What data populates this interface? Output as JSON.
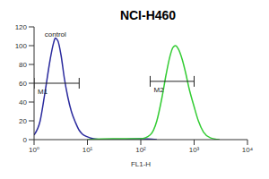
{
  "chart_data": {
    "type": "line",
    "title": "NCI-H460",
    "x_label": "FL1-H",
    "log": "x",
    "xlim": [
      1,
      10000
    ],
    "xticks": [
      {
        "value": 1,
        "label": "10⁰"
      },
      {
        "value": 10,
        "label": "10¹"
      },
      {
        "value": 100,
        "label": "10²"
      },
      {
        "value": 1000,
        "label": "10³"
      },
      {
        "value": 10000,
        "label": "10⁴"
      }
    ],
    "ylim": [
      0,
      120
    ],
    "yticks": [
      0,
      20,
      40,
      60,
      80,
      100,
      120
    ],
    "series": [
      {
        "color": "#2b2b9e",
        "x": [
          1,
          1.3,
          1.6,
          2,
          2.3,
          2.5,
          2.8,
          3.2,
          3.7,
          4.3,
          5,
          6,
          7,
          8,
          10,
          13,
          20,
          40,
          100,
          200
        ],
        "values": [
          5,
          20,
          50,
          85,
          102,
          108,
          105,
          90,
          65,
          45,
          30,
          18,
          10,
          6,
          3,
          1,
          0,
          0,
          1,
          0
        ]
      },
      {
        "color": "#33cc33",
        "x": [
          10,
          30,
          60,
          100,
          150,
          200,
          250,
          300,
          350,
          400,
          450,
          500,
          600,
          700,
          800,
          1000,
          1200,
          1500,
          2000,
          3000
        ],
        "values": [
          0,
          1,
          1,
          1,
          5,
          20,
          45,
          70,
          88,
          98,
          100,
          97,
          85,
          70,
          55,
          35,
          20,
          8,
          2,
          0
        ]
      }
    ],
    "gates": [
      {
        "label": "M1",
        "x": [
          1,
          7
        ],
        "y": 60
      },
      {
        "label": "M2",
        "x": [
          150,
          1000
        ],
        "y": 62
      }
    ],
    "annotations": [
      {
        "text": "control",
        "x": 1.3,
        "y": 112
      }
    ]
  }
}
